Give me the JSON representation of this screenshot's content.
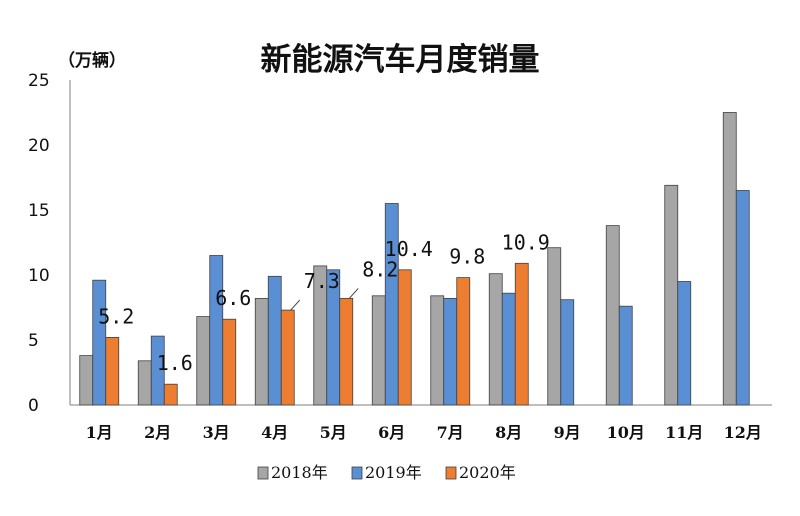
{
  "chart_data": {
    "type": "bar",
    "title": "新能源汽车月度销量",
    "unit_label": "（万辆）",
    "categories": [
      "1月",
      "2月",
      "3月",
      "4月",
      "5月",
      "6月",
      "7月",
      "8月",
      "9月",
      "10月",
      "11月",
      "12月"
    ],
    "ylim": [
      0,
      25
    ],
    "yticks": [
      0,
      5,
      10,
      15,
      20,
      25
    ],
    "grid": false,
    "legend_position": "bottom",
    "series": [
      {
        "name": "2018年",
        "color": "#a6a6a6",
        "values": [
          3.8,
          3.4,
          6.8,
          8.2,
          10.7,
          8.4,
          8.4,
          10.1,
          12.1,
          13.8,
          16.9,
          22.5
        ]
      },
      {
        "name": "2019年",
        "color": "#5b8fd4",
        "values": [
          9.6,
          5.3,
          11.5,
          9.9,
          10.4,
          15.5,
          8.2,
          8.6,
          8.1,
          7.6,
          9.5,
          16.5
        ]
      },
      {
        "name": "2020年",
        "color": "#ed7d31",
        "values": [
          5.2,
          1.6,
          6.6,
          7.3,
          8.2,
          10.4,
          9.8,
          10.9,
          null,
          null,
          null,
          null
        ],
        "data_labels": [
          "5.2",
          "1.6",
          "6.6",
          "7.3",
          "8.2",
          "10.4",
          "9.8",
          "10.9",
          "",
          "",
          "",
          ""
        ]
      }
    ]
  }
}
